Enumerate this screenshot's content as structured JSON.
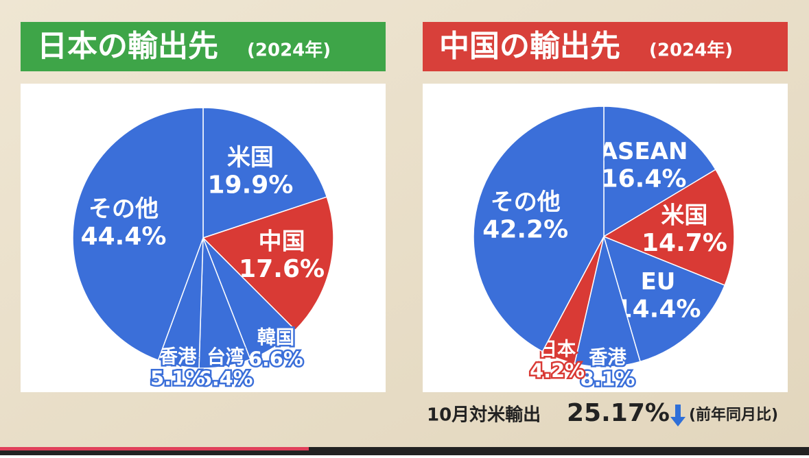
{
  "chart_data": [
    {
      "type": "pie",
      "title": "日本の輸出先",
      "subtitle": "(2024年)",
      "categories": [
        "米国",
        "中国",
        "韓国",
        "台湾",
        "香港",
        "その他"
      ],
      "values": [
        19.9,
        17.6,
        6.6,
        6.4,
        5.1,
        44.4
      ],
      "value_labels": [
        "19.9%",
        "17.6%",
        "6.6%",
        "6.4%",
        "5.1%",
        "44.4%"
      ],
      "colors": [
        "#3b6fd9",
        "#d93a35",
        "#3b6fd9",
        "#3b6fd9",
        "#3b6fd9",
        "#3b6fd9"
      ],
      "title_color": "#3ea548"
    },
    {
      "type": "pie",
      "title": "中国の輸出先",
      "subtitle": "(2024年)",
      "categories": [
        "ASEAN",
        "米国",
        "EU",
        "香港",
        "日本",
        "その他"
      ],
      "values": [
        16.4,
        14.7,
        14.4,
        8.1,
        4.2,
        42.2
      ],
      "value_labels": [
        "16.4%",
        "14.7%",
        "14.4%",
        "8.1%",
        "4.2%",
        "42.2%"
      ],
      "colors": [
        "#3b6fd9",
        "#d93a35",
        "#3b6fd9",
        "#3b6fd9",
        "#d93a35",
        "#3b6fd9"
      ],
      "title_color": "#d8403a"
    }
  ],
  "annotation": {
    "text": "10月対米輸出",
    "figure": "25.17%",
    "note": "(前年同月比)"
  }
}
